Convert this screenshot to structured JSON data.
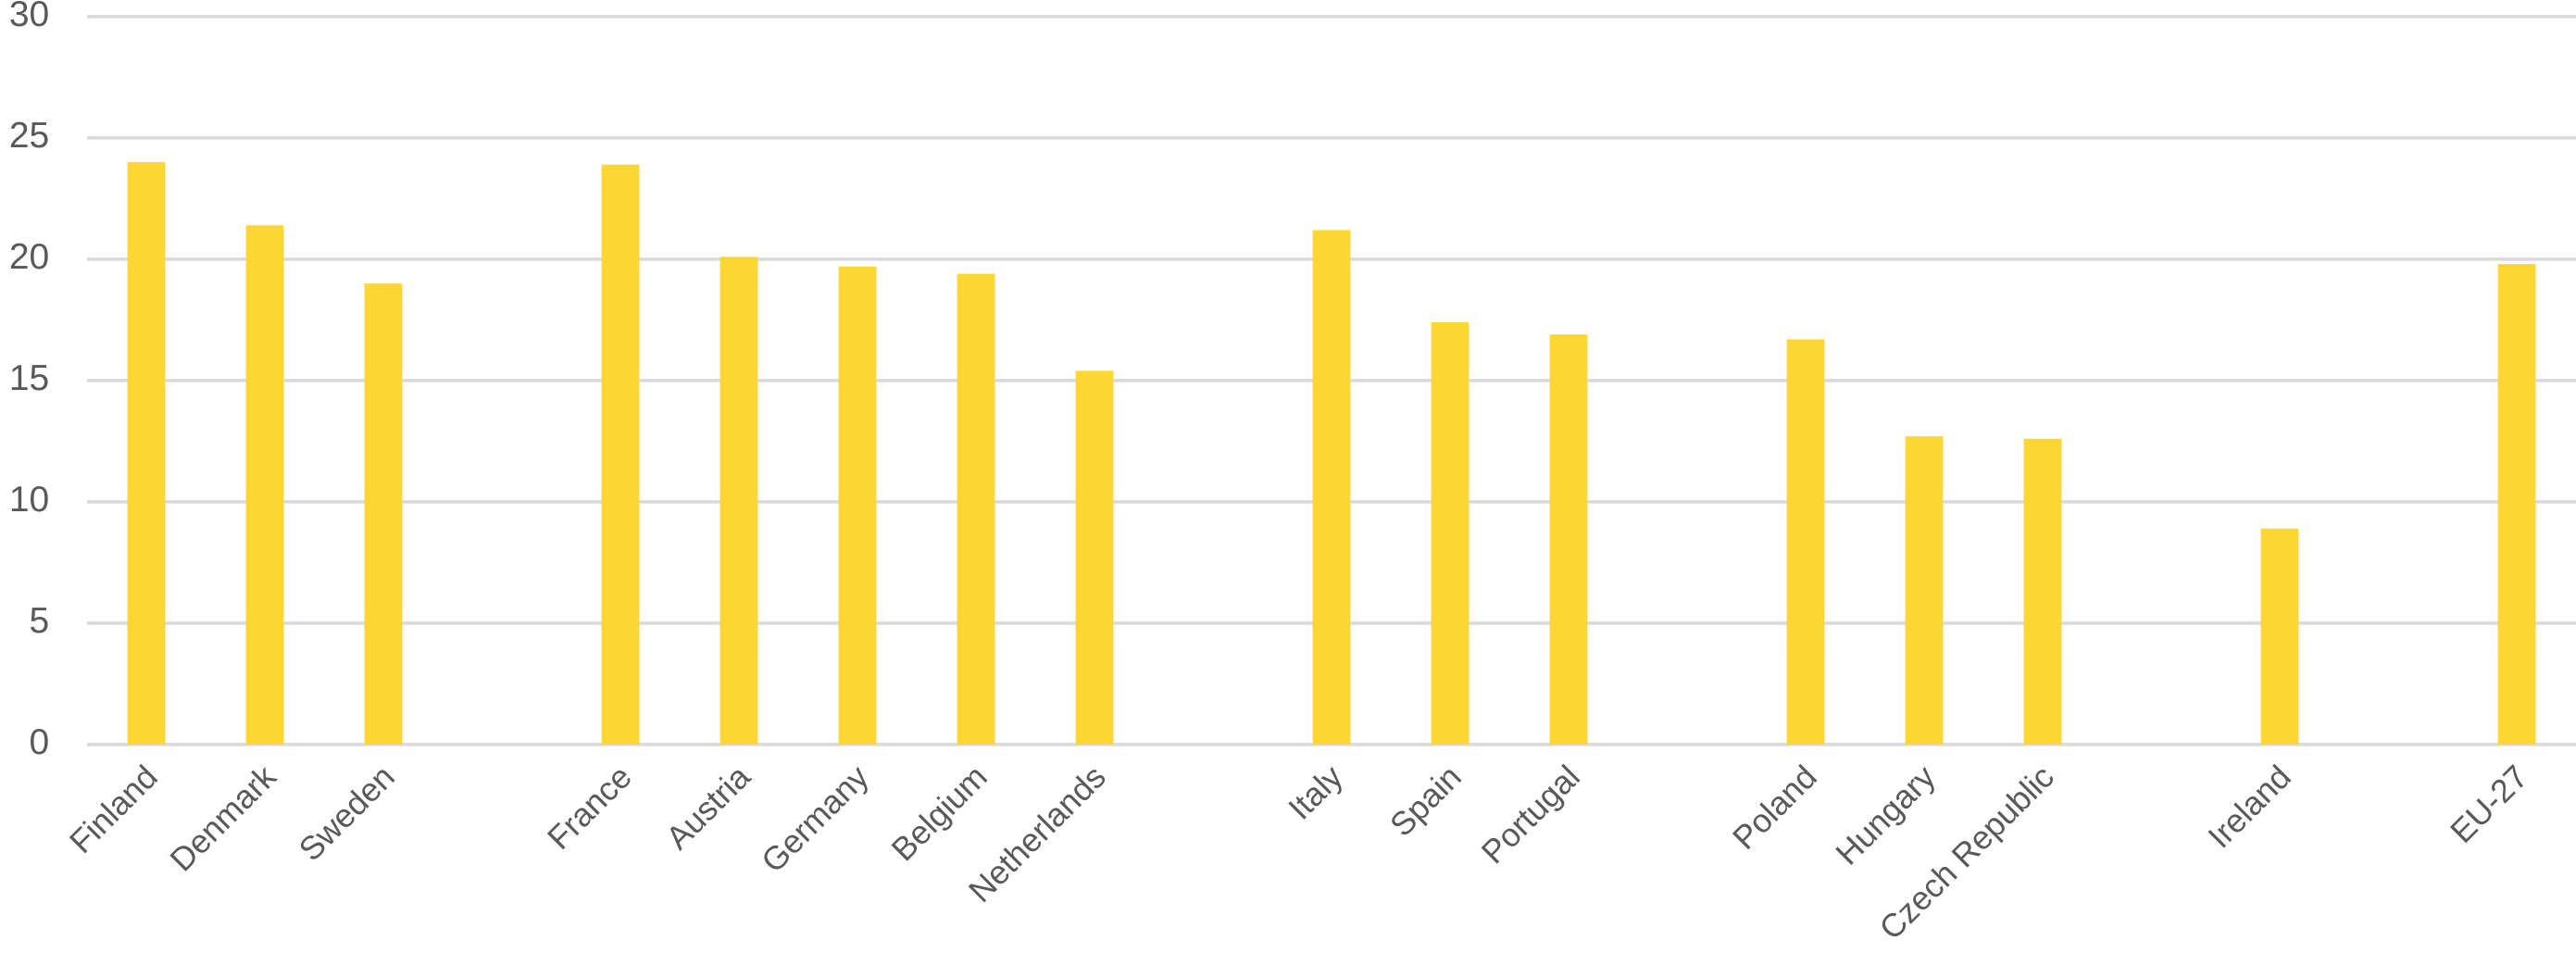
{
  "chart_data": {
    "type": "bar",
    "categories": [
      "Finland",
      "Denmark",
      "Sweden",
      null,
      "France",
      "Austria",
      "Germany",
      "Belgium",
      "Netherlands",
      null,
      "Italy",
      "Spain",
      "Portugal",
      null,
      "Poland",
      "Hungary",
      "Czech Republic",
      null,
      "Ireland",
      null,
      "EU-27"
    ],
    "values": [
      24.0,
      21.4,
      19.0,
      null,
      23.9,
      20.1,
      19.7,
      19.4,
      15.4,
      null,
      21.2,
      17.4,
      16.9,
      null,
      16.7,
      12.7,
      12.6,
      null,
      8.9,
      null,
      19.8
    ],
    "color": "#fcd731",
    "ylim": [
      0,
      30
    ],
    "yticks": [
      0,
      5,
      10,
      15,
      20,
      25,
      30
    ],
    "grid": true
  }
}
